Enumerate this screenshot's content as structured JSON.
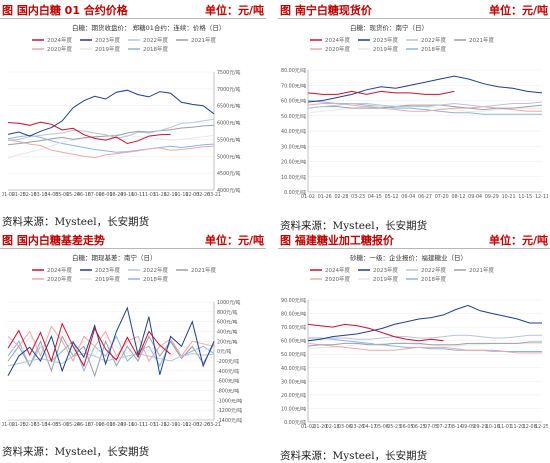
{
  "panels": [
    {
      "title": "图  国内白糖 01 合约价格",
      "unit": "单位：元/吨",
      "source": "资料来源：Mysteel，长安期货",
      "chart": {
        "type": "line",
        "title": "白糖：期货收盘价：",
        "subtitle": "郑糖01合约：连续：价格（日）",
        "x_ticks": [
          "01-02",
          "01-25",
          "02-16",
          "03-13",
          "04-05",
          "05-01",
          "05-24",
          "06-16",
          "07-09",
          "08-01",
          "08-24",
          "09-16",
          "10-11",
          "11-03",
          "11-26",
          "12-19",
          "01-11",
          "02-03",
          "02-26",
          "03-21"
        ],
        "y_ticks": [
          "4000元/吨",
          "4500元/吨",
          "5000元/吨",
          "5500元/吨",
          "6000元/吨",
          "6500元/吨",
          "7000元/吨",
          "7500元/吨"
        ],
        "ylim": [
          4000,
          7500
        ],
        "legend_pos": "top",
        "series": [
          {
            "name": "2024年度",
            "color": "#c8102e",
            "values": [
              6000,
              5980,
              5920,
              6010,
              5950,
              5780,
              5830,
              5640,
              5530,
              5480,
              5570,
              5380,
              5460,
              5600,
              5640,
              5650
            ]
          },
          {
            "name": "2023年度",
            "color": "#1f3f8a",
            "values": [
              5650,
              5720,
              5600,
              5740,
              5850,
              6050,
              6440,
              6650,
              6780,
              6700,
              6900,
              6960,
              6830,
              6760,
              6920,
              6870,
              6600,
              6540,
              6500,
              6260
            ]
          },
          {
            "name": "2022年度",
            "color": "#b8c4d6",
            "values": [
              5470,
              5500,
              5580,
              5620,
              5660,
              5690,
              5770,
              5750,
              5690,
              5640,
              5540,
              5600,
              5710,
              5690,
              5760,
              5860,
              5980,
              6000,
              6050,
              6100
            ]
          },
          {
            "name": "2021年度",
            "color": "#9aa0a8",
            "values": [
              5340,
              5380,
              5420,
              5460,
              5520,
              5560,
              5500,
              5550,
              5580,
              5600,
              5610,
              5690,
              5740,
              5720,
              5760,
              5790,
              5840,
              5860,
              5900,
              5920
            ]
          },
          {
            "name": "2020年度",
            "color": "#f0a8a8",
            "values": [
              5480,
              5440,
              5360,
              5320,
              5180,
              5120,
              5060,
              5000,
              4960,
              5040,
              5080,
              5120,
              5160,
              5220,
              5250,
              5180,
              5200,
              5240,
              5280,
              5300
            ]
          },
          {
            "name": "2019年度",
            "color": "#e8e8e8",
            "values": [
              4950,
              5050,
              5120,
              5200,
              5300,
              5420,
              5480,
              5520,
              5560,
              5600,
              5640,
              5620,
              5580,
              5560,
              5520,
              5480,
              5500,
              5540,
              5580,
              5620
            ]
          },
          {
            "name": "2018年度",
            "color": "#8ab4e8",
            "values": [
              5520,
              5580,
              5620,
              5560,
              5460,
              5380,
              5320,
              5260,
              5200,
              5160,
              5120,
              5140,
              5180,
              5220,
              5260,
              5300,
              5260,
              5300,
              5340,
              5360
            ]
          }
        ]
      }
    },
    {
      "title": "图  南宁白糖现货价",
      "unit": "单位：元/吨",
      "source": "资料来源：Mysteel，长安期货",
      "chart": {
        "type": "line",
        "title": "白糖：现货价：南宁（日）",
        "x_ticks": [
          "01-02",
          "01-26",
          "02-28",
          "03-23",
          "04-15",
          "05-12",
          "06-04",
          "06-27",
          "07-20",
          "08-12",
          "09-04",
          "09-29",
          "10-21",
          "11-15",
          "12-11"
        ],
        "y_ticks": [
          "0.00元/吨",
          "10.00元/吨",
          "20.00元/吨",
          "30.00元/吨",
          "40.00元/吨",
          "50.00元/吨",
          "60.00元/吨",
          "70.00元/吨",
          "80.00元/吨"
        ],
        "ylim": [
          0,
          80
        ],
        "legend_pos": "top",
        "series": [
          {
            "name": "2024年度",
            "color": "#c8102e",
            "values": [
              65,
              64,
              64,
              66,
              64,
              66,
              65,
              65,
              64,
              64,
              66
            ]
          },
          {
            "name": "2023年度",
            "color": "#1f3f8a",
            "values": [
              59,
              60,
              62,
              64,
              67,
              69,
              68,
              70,
              72,
              74,
              76,
              74,
              71,
              69,
              68,
              66,
              65
            ]
          },
          {
            "name": "2022年度",
            "color": "#b8c4d6",
            "values": [
              55,
              56,
              57,
              58,
              58,
              57,
              56,
              56,
              56,
              57,
              58,
              57,
              56,
              57,
              58,
              58,
              59
            ]
          },
          {
            "name": "2021年度",
            "color": "#9aa0a8",
            "values": [
              55,
              56,
              56,
              55,
              55,
              55,
              56,
              57,
              57,
              57,
              56,
              55,
              54,
              55,
              55,
              56,
              57
            ]
          },
          {
            "name": "2020年度",
            "color": "#f0a8a8",
            "values": [
              57,
              58,
              58,
              57,
              56,
              55,
              54,
              53,
              53,
              54,
              55,
              55,
              56,
              55,
              54,
              53,
              53
            ]
          },
          {
            "name": "2019年度",
            "color": "#e8e8e8",
            "values": [
              52,
              53,
              54,
              55,
              56,
              56,
              57,
              57,
              56,
              55,
              54,
              53,
              53,
              54,
              55,
              55,
              55
            ]
          },
          {
            "name": "2018年度",
            "color": "#8ab4e8",
            "values": [
              60,
              59,
              58,
              58,
              57,
              56,
              55,
              55,
              54,
              53,
              52,
              52,
              51,
              51,
              51,
              51,
              51
            ]
          }
        ]
      }
    },
    {
      "title": "图  国内白糖基差走势",
      "unit": "单位：元/吨",
      "source": "资料来源：Mysteel，长安期货",
      "chart": {
        "type": "line",
        "title": "白糖：期现基差：南宁（日）",
        "x_ticks": [
          "01-02",
          "01-25",
          "02-16",
          "03-13",
          "04-05",
          "05-01",
          "05-24",
          "06-16",
          "07-09",
          "08-01",
          "08-24",
          "09-16",
          "10-11",
          "11-03",
          "11-26",
          "12-19",
          "01-11",
          "02-03",
          "02-26",
          "03-21"
        ],
        "y_ticks": [
          "-1400元/吨",
          "-1200元/吨",
          "-1000元/吨",
          "-800元/吨",
          "-600元/吨",
          "-400元/吨",
          "-200元/吨",
          "0元/吨",
          "200元/吨",
          "400元/吨",
          "600元/吨",
          "800元/吨",
          "1000元/吨"
        ],
        "ylim": [
          -1400,
          1000
        ],
        "legend_pos": "top",
        "series": [
          {
            "name": "2024年度",
            "color": "#c8102e",
            "values": [
              60,
              420,
              -80,
              380,
              -200,
              560,
              100,
              -300,
              460,
              40,
              -180,
              280,
              -120,
              400,
              120,
              -60
            ]
          },
          {
            "name": "2023年度",
            "color": "#1f3f8a",
            "values": [
              -500,
              -100,
              80,
              -200,
              300,
              -400,
              180,
              -120,
              520,
              -260,
              400,
              880,
              -80,
              700,
              -480,
              300,
              100,
              600,
              -300,
              200
            ]
          },
          {
            "name": "2022年度",
            "color": "#b8c4d6",
            "values": [
              -300,
              -250,
              -200,
              -150,
              -200,
              -250,
              -100,
              -50,
              -100,
              -200,
              -150,
              -100,
              -50,
              -100,
              -150,
              -200,
              -100,
              -50,
              -80,
              -60
            ]
          },
          {
            "name": "2021年度",
            "color": "#9aa0a8",
            "values": [
              -200,
              100,
              -300,
              200,
              -400,
              300,
              -100,
              100,
              -500,
              200,
              -300,
              100,
              -200,
              300,
              -100,
              200,
              -150,
              100,
              -250,
              150
            ]
          },
          {
            "name": "2020年度",
            "color": "#f0a8a8",
            "values": [
              300,
              100,
              400,
              -100,
              500,
              200,
              -200,
              300,
              100,
              400,
              -100,
              200,
              300,
              -200,
              100,
              250,
              -100,
              200,
              150,
              100
            ]
          },
          {
            "name": "2019年度",
            "color": "#e8e8e8",
            "values": [
              200,
              -100,
              300,
              100,
              -200,
              400,
              0,
              200,
              -100,
              300,
              100,
              -50,
              200,
              0,
              150,
              -100,
              100,
              50,
              0,
              100
            ]
          },
          {
            "name": "2018年度",
            "color": "#8ab4e8",
            "values": [
              -100,
              200,
              -300,
              100,
              -200,
              0,
              200,
              -400,
              100,
              -100,
              300,
              -200,
              0,
              100,
              -300,
              200,
              -100,
              0,
              100,
              -50
            ]
          }
        ]
      }
    },
    {
      "title": "图  福建糖业加工糖报价",
      "unit": "单位：元/吨",
      "source": "资料来源：Mysteel，长安期货",
      "chart": {
        "type": "line",
        "title": "砂糖：一级：企业报价：福建糖业（日）",
        "x_ticks": [
          "01-02",
          "01-20",
          "02-18",
          "03-06",
          "03-26",
          "04-17",
          "05-06",
          "05-23",
          "06-05",
          "06-25",
          "07-05",
          "07-27",
          "08-14",
          "09-09",
          "09-29",
          "10-16",
          "11-01",
          "11-20",
          "12-08",
          "12-25"
        ],
        "y_ticks": [
          "0.00元/吨",
          "10.00元/吨",
          "20.00元/吨",
          "30.00元/吨",
          "40.00元/吨",
          "50.00元/吨",
          "60.00元/吨",
          "70.00元/吨",
          "80.00元/吨",
          "90.00元/吨"
        ],
        "ylim": [
          0,
          90
        ],
        "legend_pos": "top",
        "series": [
          {
            "name": "2024年度",
            "color": "#c8102e",
            "values": [
              72,
              71,
              70,
              72,
              71,
              69,
              66,
              63,
              61,
              60,
              61,
              60
            ]
          },
          {
            "name": "2023年度",
            "color": "#1f3f8a",
            "values": [
              60,
              61,
              63,
              64,
              65,
              67,
              69,
              72,
              74,
              76,
              77,
              79,
              83,
              86,
              82,
              80,
              78,
              76,
              73,
              73
            ]
          },
          {
            "name": "2022年度",
            "color": "#b8c4d6",
            "values": [
              60,
              61,
              62,
              62,
              61,
              61,
              62,
              63,
              63,
              62,
              62,
              63,
              64,
              64,
              63,
              62,
              62,
              63,
              64,
              64
            ]
          },
          {
            "name": "2021年度",
            "color": "#9aa0a8",
            "values": [
              56,
              57,
              57,
              58,
              58,
              57,
              57,
              58,
              58,
              58,
              57,
              57,
              57,
              58,
              58,
              58,
              58,
              58,
              59,
              59
            ]
          },
          {
            "name": "2020年度",
            "color": "#f0a8a8",
            "values": [
              58,
              57,
              56,
              55,
              54,
              53,
              53,
              53,
              54,
              55,
              55,
              55,
              54,
              53,
              53,
              52,
              52,
              51,
              51,
              51
            ]
          },
          {
            "name": "2019年度",
            "color": "#e8e8e8",
            "values": [
              54,
              55,
              55,
              56,
              57,
              57,
              58,
              58,
              58,
              57,
              57,
              56,
              56,
              57,
              57,
              58,
              58,
              58,
              58,
              58
            ]
          },
          {
            "name": "2018年度",
            "color": "#8ab4e8",
            "values": [
              62,
              62,
              61,
              60,
              59,
              58,
              57,
              56,
              55,
              55,
              54,
              54,
              53,
              53,
              53,
              53,
              52,
              52,
              52,
              52
            ]
          }
        ]
      }
    }
  ]
}
